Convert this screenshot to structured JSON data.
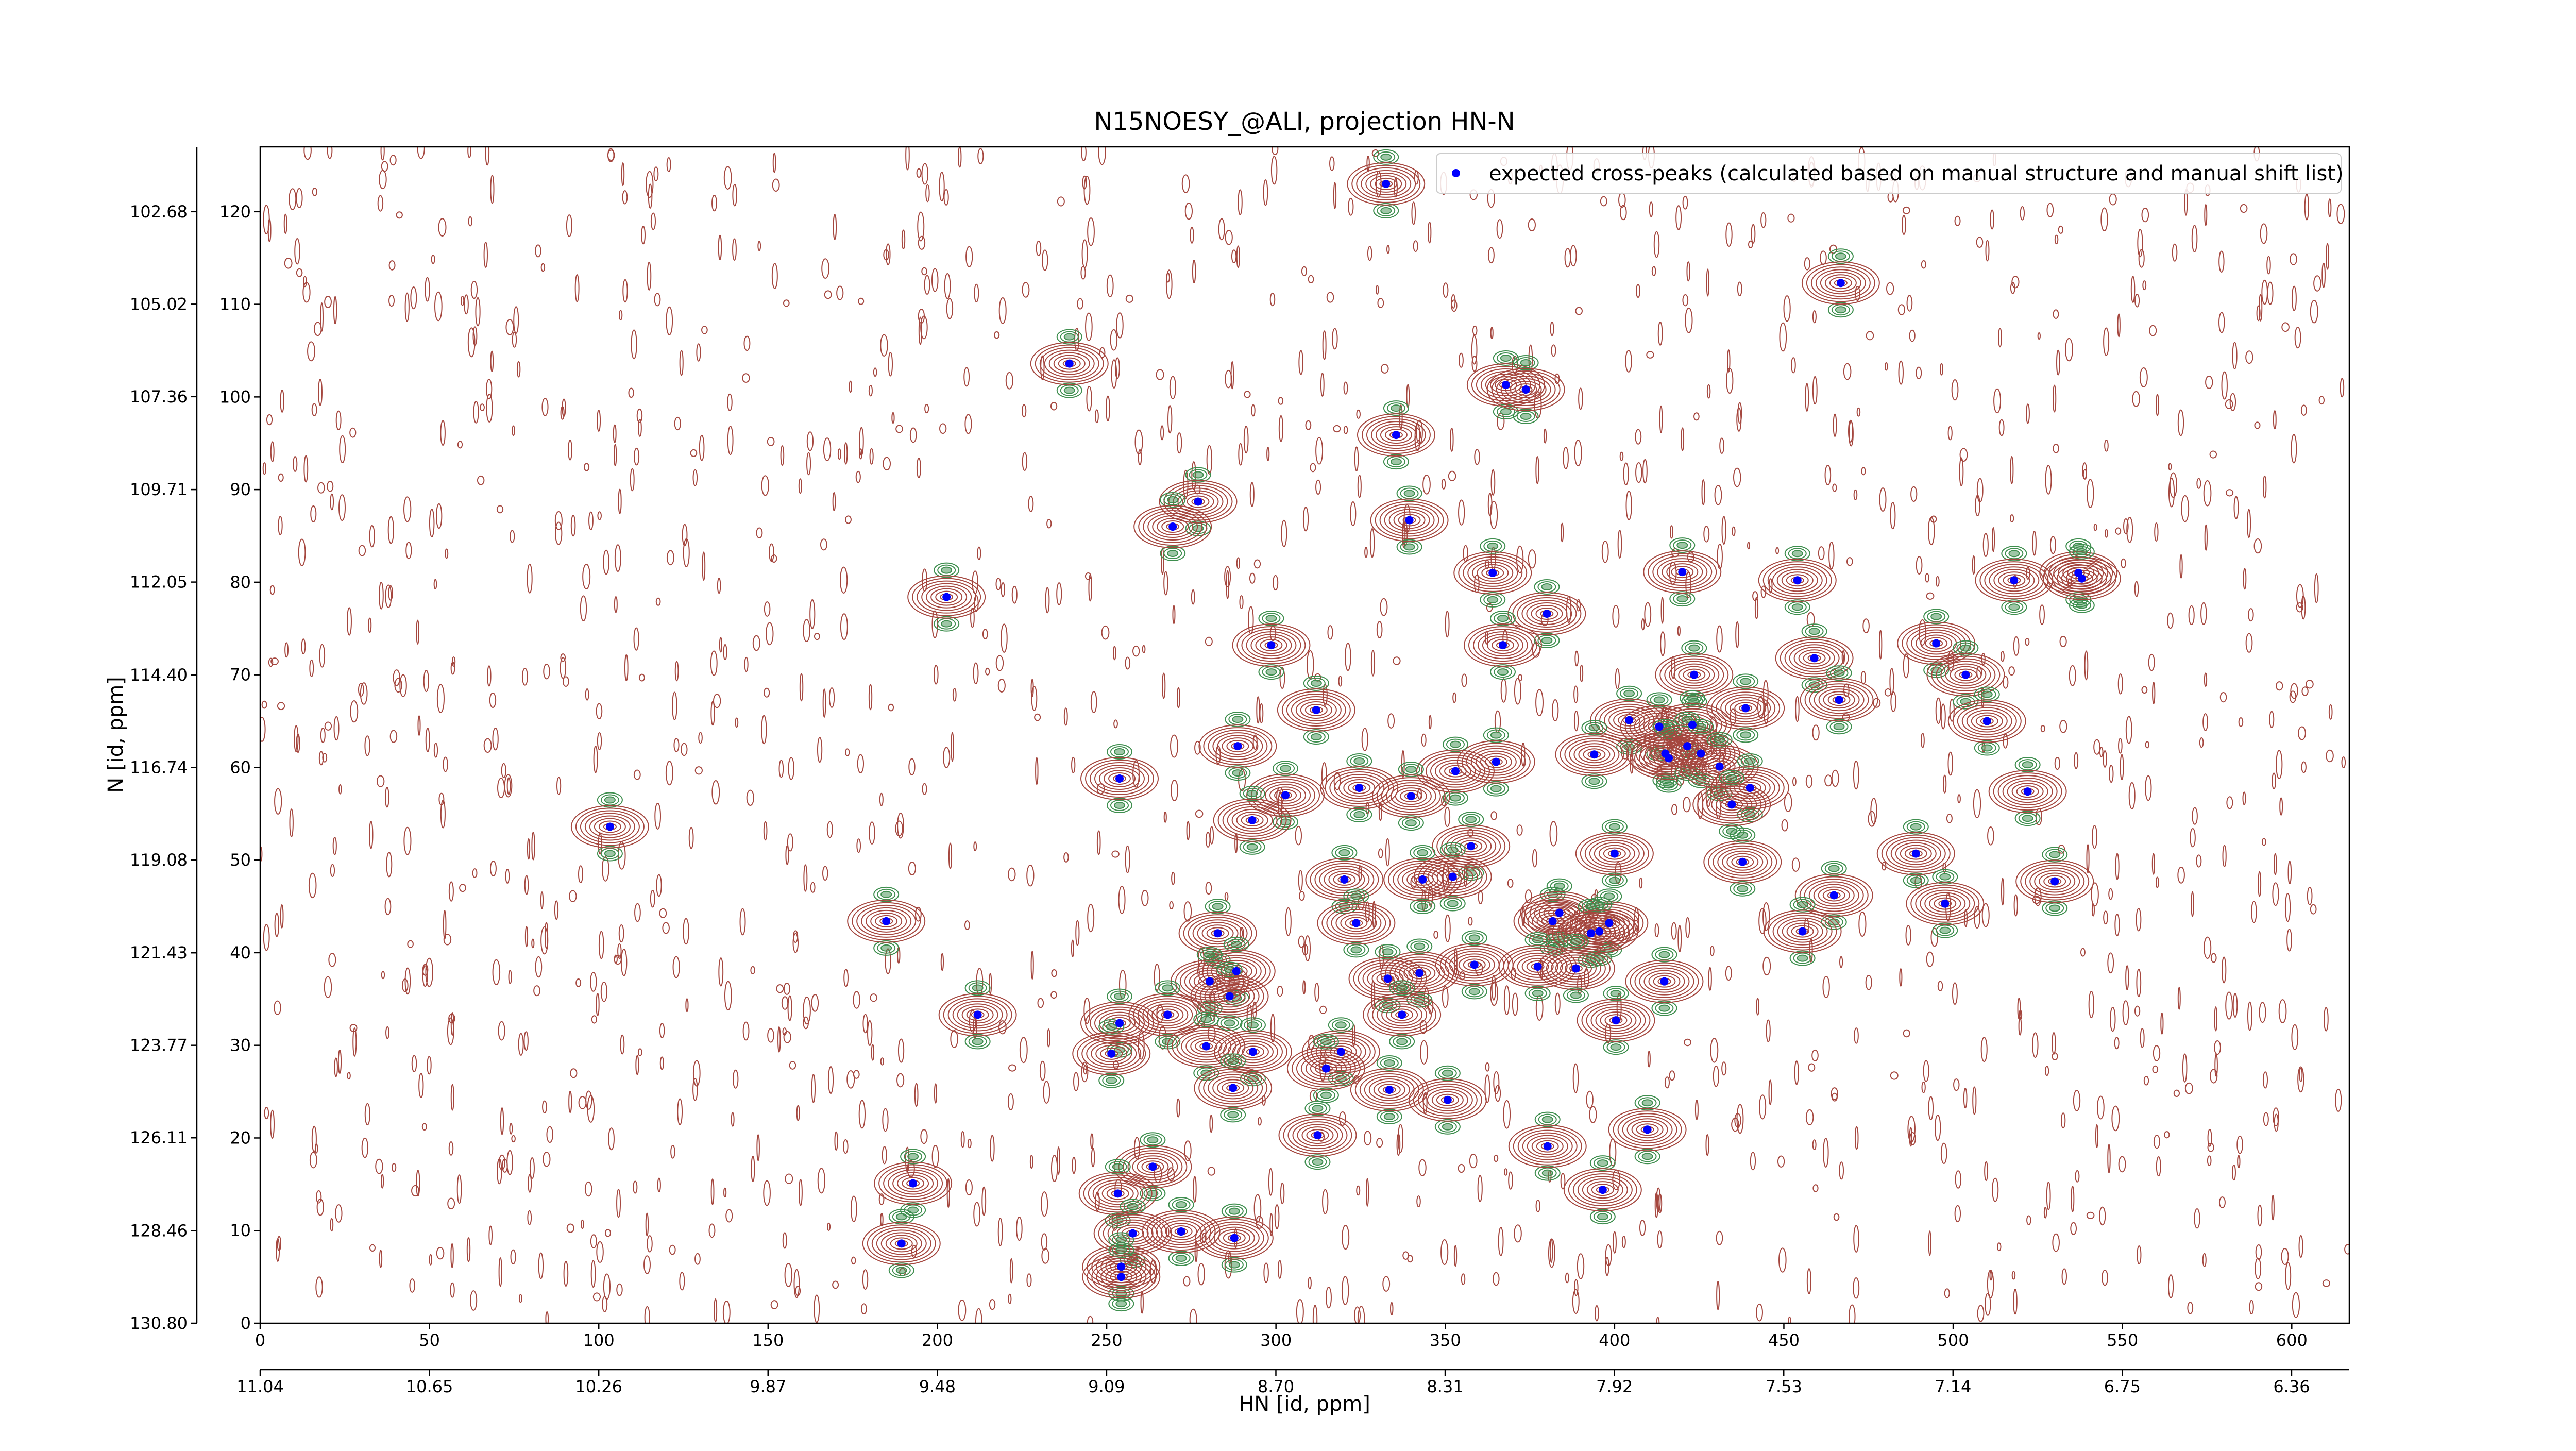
{
  "chart_data": {
    "type": "scatter",
    "title": "N15NOESY_@ALI, projection HN-N",
    "xlabel": "HN [id, ppm]",
    "ylabel": "N [id, ppm]",
    "xlim": [
      0,
      617
    ],
    "ylim": [
      0,
      127
    ],
    "xticks": [
      0,
      50,
      100,
      150,
      200,
      250,
      300,
      350,
      400,
      450,
      500,
      550,
      600
    ],
    "yticks": [
      0,
      10,
      20,
      30,
      40,
      50,
      60,
      70,
      80,
      90,
      100,
      110,
      120
    ],
    "x2lim": [
      11.04,
      6.227
    ],
    "x2ticks": [
      11.04,
      10.65,
      10.26,
      9.87,
      9.48,
      9.09,
      {
        "value": 8.7,
        "label": "8.70"
      },
      8.31,
      7.92,
      7.53,
      7.14,
      6.75,
      6.36
    ],
    "y2lim": [
      130.8,
      101.04
    ],
    "y2ticks": [
      {
        "value": 130.8,
        "label": "130.80"
      },
      128.46,
      126.11,
      123.77,
      121.43,
      119.08,
      116.74,
      {
        "value": 114.4,
        "label": "114.40"
      },
      112.05,
      109.71,
      107.36,
      105.02,
      102.68
    ],
    "legend": "upper right",
    "contour_colors": [
      "#a5473f",
      "#3e8e4e"
    ],
    "series": [
      {
        "name": "expected cross-peaks (calculated based on manual structure and manual shift list)",
        "color": "#0000ff",
        "x": [
          332.5,
          466.8,
          239,
          367.9,
          373.8,
          335.5,
          277,
          269.5,
          339.4,
          202.7,
          364,
          420,
          454,
          518,
          537,
          538,
          380,
          298.6,
          367,
          495,
          459,
          503.7,
          423.5,
          311.9,
          466.3,
          404.3,
          413.2,
          423,
          438.7,
          510,
          415,
          416,
          421.5,
          425.5,
          394,
          288.7,
          253.8,
          365,
          353,
          431,
          324.6,
          302.8,
          339.9,
          440,
          522,
          434.6,
          293,
          103.3,
          357.6,
          400,
          437.8,
          489,
          320.2,
          343.3,
          352.2,
          464.8,
          530,
          497.6,
          323.7,
          184.9,
          381.7,
          383.7,
          398.4,
          393,
          395.5,
          455.5,
          282.8,
          358.6,
          377.3,
          388.6,
          288.3,
          342.4,
          333,
          414.7,
          280.4,
          286.3,
          211.9,
          268,
          337.2,
          400.4,
          253.8,
          251.4,
          279.4,
          293.2,
          319.2,
          314.8,
          287.3,
          333.5,
          350.7,
          312.3,
          409.7,
          380.2,
          192.8,
          263.6,
          253.3,
          396.5,
          257.7,
          272,
          287.7,
          189.4,
          254.3,
          254.3
        ],
        "y": [
          123,
          112.3,
          103.6,
          101.3,
          100.8,
          95.9,
          88.7,
          86,
          86.7,
          78.4,
          81,
          81.1,
          80.2,
          80.2,
          81,
          80.4,
          76.6,
          73.2,
          73.2,
          73.4,
          71.8,
          70,
          70,
          66.2,
          67.3,
          65.1,
          64.4,
          64.6,
          66.4,
          65,
          61.5,
          61,
          62.3,
          61.5,
          61.4,
          62.3,
          58.8,
          60.6,
          59.6,
          60.1,
          57.8,
          57,
          56.9,
          57.8,
          57.4,
          56,
          54.3,
          53.6,
          51.5,
          50.7,
          49.8,
          50.7,
          47.9,
          47.9,
          48.2,
          46.2,
          47.7,
          45.3,
          43.2,
          43.4,
          43.4,
          44.3,
          43.2,
          42.1,
          42.3,
          42.3,
          42.1,
          38.7,
          38.5,
          38.3,
          38,
          37.8,
          37.2,
          36.9,
          36.9,
          35.3,
          33.3,
          33.3,
          33.3,
          32.7,
          32.4,
          29.1,
          29.9,
          29.3,
          29.3,
          27.5,
          25.4,
          25.2,
          24.1,
          20.3,
          20.9,
          19.1,
          15.1,
          16.9,
          14,
          14.4,
          9.7,
          9.9,
          9.2,
          8.6,
          6.1,
          5
        ]
      }
    ]
  }
}
